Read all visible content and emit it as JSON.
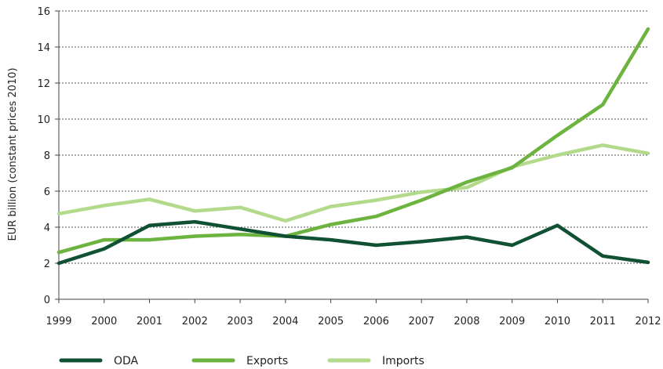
{
  "chart_data": {
    "type": "line",
    "title": "",
    "xlabel": "",
    "ylabel": "EUR billion (constant prices 2010)",
    "x": [
      "1999",
      "2000",
      "2001",
      "2002",
      "2003",
      "2004",
      "2005",
      "2006",
      "2007",
      "2008",
      "2009",
      "2010",
      "2011",
      "2012"
    ],
    "yticks": [
      0,
      2,
      4,
      6,
      8,
      10,
      12,
      14,
      16
    ],
    "ylim": [
      0,
      16
    ],
    "grid": "horizontal dotted",
    "legend_position": "bottom",
    "series": [
      {
        "name": "ODA",
        "color": "#0f5132",
        "values": [
          2.0,
          2.8,
          4.1,
          4.3,
          3.9,
          3.5,
          3.3,
          3.0,
          3.2,
          3.45,
          3.0,
          4.1,
          2.4,
          2.05
        ]
      },
      {
        "name": "Exports",
        "color": "#6db33f",
        "values": [
          2.6,
          3.3,
          3.3,
          3.5,
          3.6,
          3.5,
          4.15,
          4.6,
          5.5,
          6.5,
          7.3,
          9.1,
          10.8,
          15.0
        ]
      },
      {
        "name": "Imports",
        "color": "#b3d98a",
        "values": [
          4.75,
          5.2,
          5.55,
          4.9,
          5.1,
          4.35,
          5.15,
          5.5,
          5.95,
          6.2,
          7.35,
          8.0,
          8.55,
          8.1
        ]
      }
    ]
  }
}
